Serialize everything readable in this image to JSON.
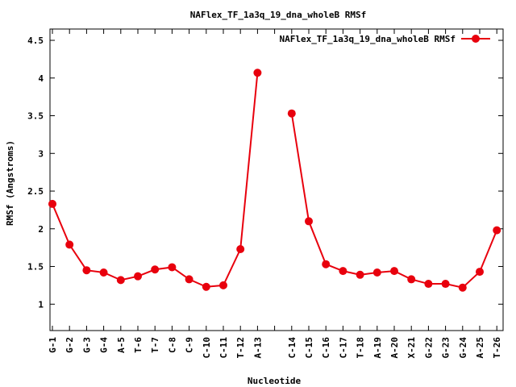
{
  "chart_data": {
    "type": "line",
    "title": "NAFlex_TF_1a3q_19_dna_wholeB RMSf",
    "xlabel": "Nucleotide",
    "ylabel": "RMSf (Angstroms)",
    "ylim": [
      0.65,
      4.65
    ],
    "yticks": [
      "1",
      "1.5",
      "2",
      "2.5",
      "3",
      "3.5",
      "4",
      "4.5"
    ],
    "yticks_values": [
      1,
      1.5,
      2,
      2.5,
      3,
      3.5,
      4,
      4.5
    ],
    "grid": false,
    "legend_position": "top-right",
    "line_color": "#e8000d",
    "categories": [
      "G-1",
      "G-2",
      "G-3",
      "G-4",
      "A-5",
      "T-6",
      "T-7",
      "C-8",
      "C-9",
      "C-10",
      "C-11",
      "T-12",
      "A-13",
      "",
      "C-14",
      "C-15",
      "C-16",
      "C-17",
      "T-18",
      "A-19",
      "A-20",
      "X-21",
      "G-22",
      "G-23",
      "G-24",
      "A-25",
      "T-26"
    ],
    "series": [
      {
        "name": "NAFlex_TF_1a3q_19_dna_wholeB RMSf",
        "values": [
          2.33,
          1.79,
          1.45,
          1.42,
          1.32,
          1.37,
          1.46,
          1.49,
          1.33,
          1.23,
          1.25,
          1.73,
          4.07,
          null,
          3.53,
          2.1,
          1.53,
          1.44,
          1.39,
          1.42,
          1.44,
          1.33,
          1.27,
          1.27,
          1.22,
          1.43,
          1.98
        ]
      }
    ]
  }
}
